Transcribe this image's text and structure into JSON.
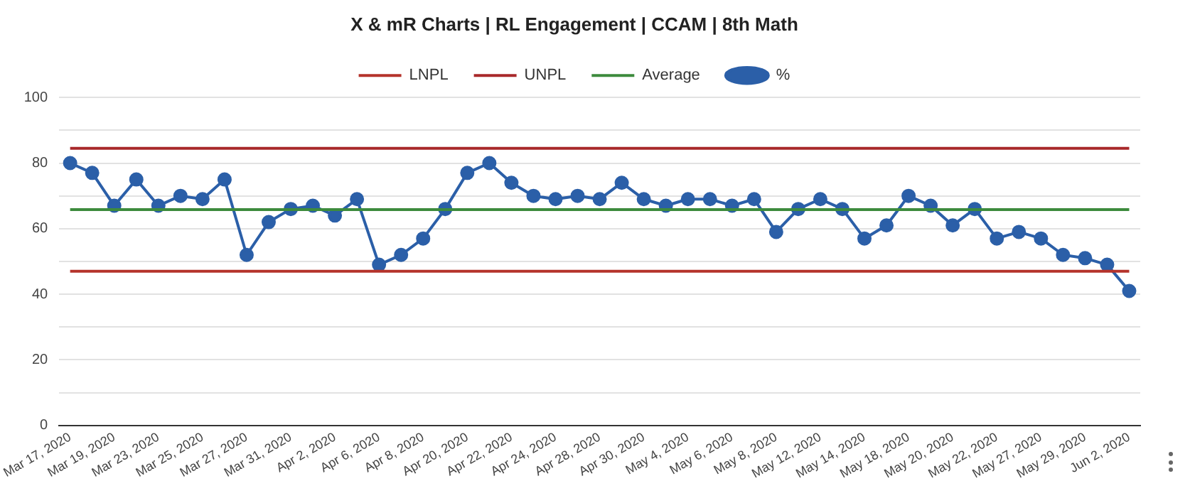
{
  "chart_data": {
    "type": "line",
    "title": "X & mR Charts | RL Engagement | CCAM | 8th Math",
    "categories": [
      "Mar 17, 2020",
      null,
      "Mar 19, 2020",
      null,
      "Mar 23, 2020",
      null,
      "Mar 25, 2020",
      null,
      "Mar 27, 2020",
      null,
      "Mar 31, 2020",
      null,
      "Apr 2, 2020",
      null,
      "Apr 6, 2020",
      null,
      "Apr 8, 2020",
      null,
      "Apr 20, 2020",
      null,
      "Apr 22, 2020",
      null,
      "Apr 24, 2020",
      null,
      "Apr 28, 2020",
      null,
      "Apr 30, 2020",
      null,
      "May 4, 2020",
      null,
      "May 6, 2020",
      null,
      "May 8, 2020",
      null,
      "May 12, 2020",
      null,
      "May 14, 2020",
      null,
      "May 18, 2020",
      null,
      "May 20, 2020",
      null,
      "May 22, 2020",
      null,
      "May 27, 2020",
      null,
      "May 29, 2020",
      null,
      "Jun 2, 2020"
    ],
    "series": [
      {
        "name": "LNPL",
        "color": "#b5332b",
        "marker": "none",
        "values": [
          47,
          47,
          47,
          47,
          47,
          47,
          47,
          47,
          47,
          47,
          47,
          47,
          47,
          47,
          47,
          47,
          47,
          47,
          47,
          47,
          47,
          47,
          47,
          47,
          47,
          47,
          47,
          47,
          47,
          47,
          47,
          47,
          47,
          47,
          47,
          47,
          47,
          47,
          47,
          47,
          47,
          47,
          47,
          47,
          47,
          47,
          47,
          47,
          47
        ]
      },
      {
        "name": "UNPL",
        "color": "#a8282a",
        "marker": "none",
        "values": [
          84.5,
          84.5,
          84.5,
          84.5,
          84.5,
          84.5,
          84.5,
          84.5,
          84.5,
          84.5,
          84.5,
          84.5,
          84.5,
          84.5,
          84.5,
          84.5,
          84.5,
          84.5,
          84.5,
          84.5,
          84.5,
          84.5,
          84.5,
          84.5,
          84.5,
          84.5,
          84.5,
          84.5,
          84.5,
          84.5,
          84.5,
          84.5,
          84.5,
          84.5,
          84.5,
          84.5,
          84.5,
          84.5,
          84.5,
          84.5,
          84.5,
          84.5,
          84.5,
          84.5,
          84.5,
          84.5,
          84.5,
          84.5,
          84.5
        ]
      },
      {
        "name": "Average",
        "color": "#3d8b3d",
        "marker": "none",
        "values": [
          65.8,
          65.8,
          65.8,
          65.8,
          65.8,
          65.8,
          65.8,
          65.8,
          65.8,
          65.8,
          65.8,
          65.8,
          65.8,
          65.8,
          65.8,
          65.8,
          65.8,
          65.8,
          65.8,
          65.8,
          65.8,
          65.8,
          65.8,
          65.8,
          65.8,
          65.8,
          65.8,
          65.8,
          65.8,
          65.8,
          65.8,
          65.8,
          65.8,
          65.8,
          65.8,
          65.8,
          65.8,
          65.8,
          65.8,
          65.8,
          65.8,
          65.8,
          65.8,
          65.8,
          65.8,
          65.8,
          65.8,
          65.8,
          65.8
        ]
      },
      {
        "name": "%",
        "color": "#2b5fa8",
        "marker": "circle",
        "values": [
          80,
          77,
          67,
          75,
          67,
          70,
          69,
          75,
          52,
          62,
          66,
          67,
          64,
          69,
          49,
          52,
          57,
          66,
          77,
          80,
          74,
          70,
          69,
          70,
          69,
          74,
          69,
          67,
          69,
          69,
          67,
          69,
          59,
          66,
          69,
          66,
          57,
          61,
          70,
          67,
          61,
          66,
          57,
          59,
          57,
          52,
          51,
          49,
          41
        ]
      }
    ],
    "ylim": [
      0,
      100
    ],
    "yticks": [
      0,
      {
        "value": 10,
        "label": null
      },
      20,
      {
        "value": 30,
        "label": null
      },
      40,
      {
        "value": 50,
        "label": null
      },
      60,
      {
        "value": 70,
        "label": null
      },
      80,
      {
        "value": 90,
        "label": null
      },
      100
    ],
    "grid": "y",
    "legend": "top",
    "line_style": "solid"
  }
}
